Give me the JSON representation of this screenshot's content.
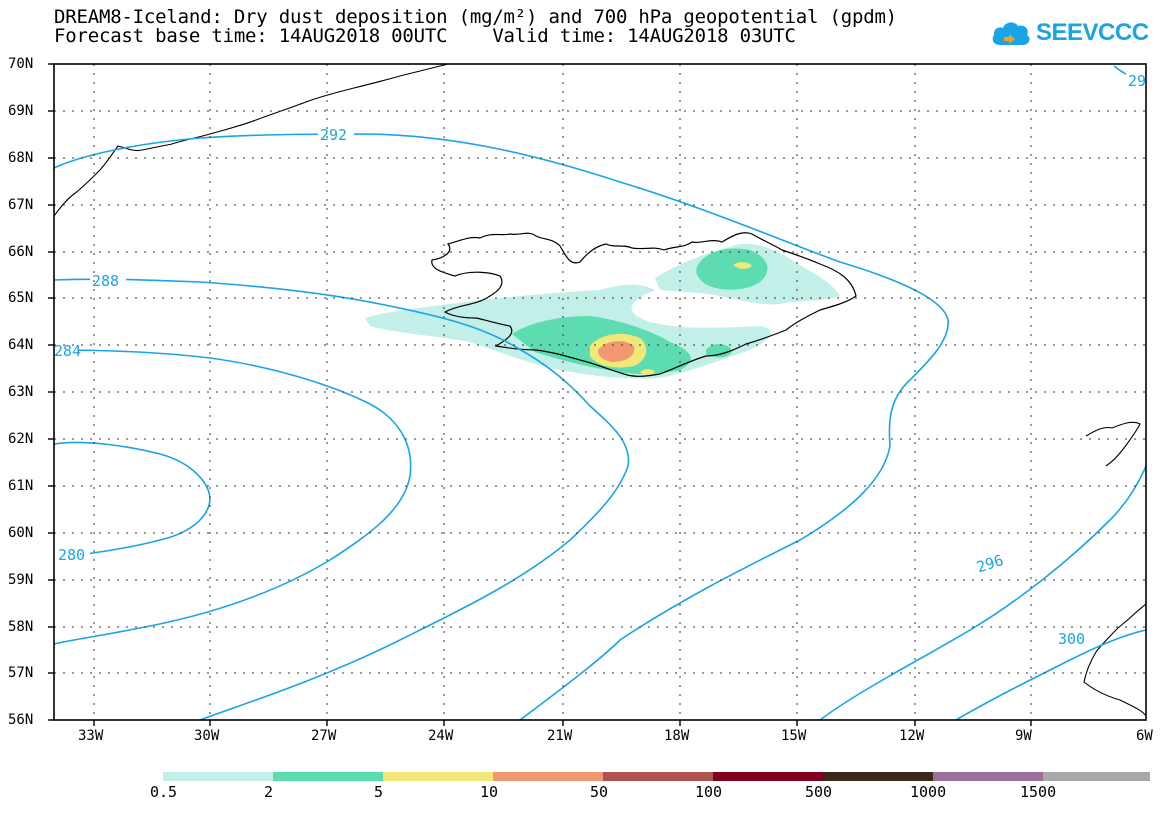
{
  "title": {
    "line1": "DREAM8-Iceland: Dry dust deposition (mg/m²) and 700 hPa geopotential (gpdm)",
    "line2": "Forecast base time: 14AUG2018 00UTC    Valid time: 14AUG2018 03UTC"
  },
  "logo": {
    "text": "SEEVCCC",
    "icon": "cloud-icon"
  },
  "axes": {
    "lat_labels": [
      "70N",
      "69N",
      "68N",
      "67N",
      "66N",
      "65N",
      "64N",
      "63N",
      "62N",
      "61N",
      "60N",
      "59N",
      "58N",
      "57N",
      "56N"
    ],
    "lon_labels": [
      "33W",
      "30W",
      "27W",
      "24W",
      "21W",
      "18W",
      "15W",
      "12W",
      "9W",
      "6W"
    ]
  },
  "contours": {
    "color": "#1aa4e8",
    "labels": [
      "292",
      "288",
      "284",
      "280",
      "296",
      "300",
      "29"
    ]
  },
  "legend": {
    "colors": [
      "#c2f0e8",
      "#5cdcb0",
      "#f0e878",
      "#f09870",
      "#ad5450",
      "#800020",
      "#3c2818",
      "#9a7098",
      "#a8a8a8"
    ],
    "ticks": [
      "0.5",
      "2",
      "5",
      "10",
      "50",
      "100",
      "500",
      "1000",
      "1500"
    ]
  }
}
